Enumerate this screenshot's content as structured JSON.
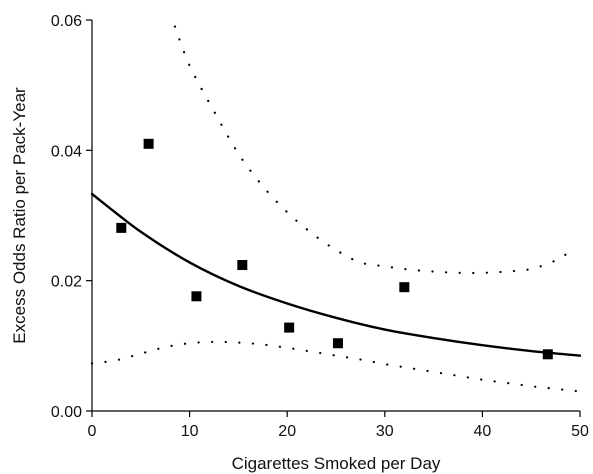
{
  "chart_data": {
    "type": "scatter",
    "title": "",
    "xlabel": "Cigarettes Smoked per Day",
    "ylabel": "Excess Odds Ratio per Pack-Year",
    "xlim": [
      0,
      50
    ],
    "ylim": [
      0,
      0.06
    ],
    "xticks": [
      0,
      10,
      20,
      30,
      40,
      50
    ],
    "xtick_labels": [
      "0",
      "10",
      "20",
      "30",
      "40",
      "50"
    ],
    "yticks": [
      0,
      0.02,
      0.04,
      0.06
    ],
    "ytick_labels": [
      "0.00",
      "0.02",
      "0.04",
      "0.06"
    ],
    "grid": false,
    "legend": "none",
    "series": [
      {
        "type": "scatter",
        "marker": "square",
        "color": "#000000",
        "x": [
          3,
          5.8,
          10.7,
          15.4,
          20.2,
          25.2,
          32,
          46.7
        ],
        "y": [
          0.0281,
          0.041,
          0.0176,
          0.0224,
          0.0128,
          0.0104,
          0.019,
          0.0087
        ]
      },
      {
        "type": "line",
        "style": "solid",
        "color": "#000000",
        "x": [
          0,
          5,
          10,
          15,
          20,
          25,
          30,
          35,
          40,
          45,
          50
        ],
        "y": [
          0.0333,
          0.0275,
          0.0228,
          0.0192,
          0.0165,
          0.0143,
          0.0125,
          0.0112,
          0.0101,
          0.0092,
          0.0085
        ]
      },
      {
        "type": "line",
        "style": "dotted",
        "color": "#000000",
        "x": [
          8.5,
          10,
          12.5,
          15,
          17.5,
          20,
          22.5,
          25,
          27.5,
          30,
          32.5,
          35,
          37.5,
          40,
          42.5,
          45,
          47.5,
          49
        ],
        "y": [
          0.059,
          0.053,
          0.046,
          0.0395,
          0.0345,
          0.0305,
          0.0273,
          0.0247,
          0.0228,
          0.0222,
          0.0217,
          0.0214,
          0.0212,
          0.0212,
          0.0214,
          0.0218,
          0.0231,
          0.0245
        ]
      },
      {
        "type": "line",
        "style": "dotted",
        "color": "#000000",
        "x": [
          0,
          2.5,
          5,
          7.5,
          10,
          12.5,
          15,
          17.5,
          20,
          22.5,
          25,
          27.5,
          30,
          32.5,
          35,
          37.5,
          40,
          42.5,
          45,
          47.5,
          50
        ],
        "y": [
          0.0073,
          0.0078,
          0.0088,
          0.0098,
          0.0104,
          0.0106,
          0.0105,
          0.0102,
          0.0097,
          0.0091,
          0.0085,
          0.0079,
          0.0072,
          0.0066,
          0.006,
          0.0054,
          0.0048,
          0.0043,
          0.0038,
          0.0034,
          0.003
        ]
      }
    ]
  }
}
